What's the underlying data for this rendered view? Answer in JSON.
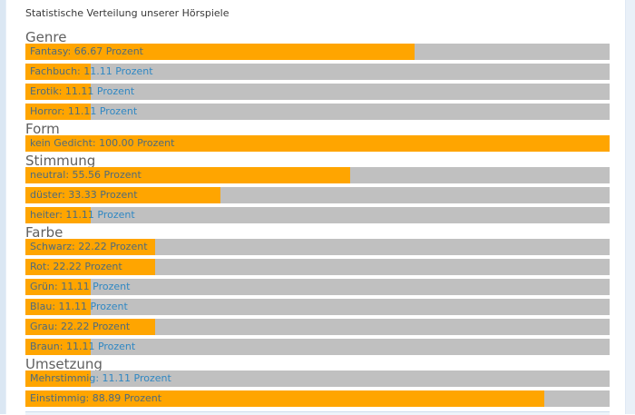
{
  "page": {
    "title": "Statistische Verteilung unserer Hörspiele",
    "unit": "Prozent"
  },
  "colors": {
    "bar_fill_orange": "#FFA500",
    "bar_track_gray": "#C0C0C0",
    "label_blue": "#2F87C3",
    "label_on_orange": "#4E6B7C",
    "heading_gray": "#5F5F5F",
    "title_dark": "#383838",
    "left_strip_blue": "#DBE7F3",
    "right_strip_blue": "#E9F0F8",
    "panel_edge_blue": "#CDDDEC"
  },
  "chart_data": [
    {
      "type": "bar",
      "orientation": "horizontal",
      "title": "Genre",
      "unit": "Prozent",
      "xlim": [
        0,
        100
      ],
      "grid": false,
      "legend": "none",
      "categories": [
        "Fantasy",
        "Fachbuch",
        "Erotik",
        "Horror"
      ],
      "values": [
        66.67,
        11.11,
        11.11,
        11.11
      ]
    },
    {
      "type": "bar",
      "orientation": "horizontal",
      "title": "Form",
      "unit": "Prozent",
      "xlim": [
        0,
        100
      ],
      "grid": false,
      "legend": "none",
      "categories": [
        "kein Gedicht"
      ],
      "values": [
        100.0
      ]
    },
    {
      "type": "bar",
      "orientation": "horizontal",
      "title": "Stimmung",
      "unit": "Prozent",
      "xlim": [
        0,
        100
      ],
      "grid": false,
      "legend": "none",
      "categories": [
        "neutral",
        "düster",
        "heiter"
      ],
      "values": [
        55.56,
        33.33,
        11.11
      ]
    },
    {
      "type": "bar",
      "orientation": "horizontal",
      "title": "Farbe",
      "unit": "Prozent",
      "xlim": [
        0,
        100
      ],
      "grid": false,
      "legend": "none",
      "categories": [
        "Schwarz",
        "Rot",
        "Grün",
        "Blau",
        "Grau",
        "Braun"
      ],
      "values": [
        22.22,
        22.22,
        11.11,
        11.11,
        22.22,
        11.11
      ]
    },
    {
      "type": "bar",
      "orientation": "horizontal",
      "title": "Umsetzung",
      "unit": "Prozent",
      "xlim": [
        0,
        100
      ],
      "grid": false,
      "legend": "none",
      "categories": [
        "Mehrstimmig",
        "Einstimmig"
      ],
      "values": [
        11.11,
        88.89
      ]
    }
  ]
}
